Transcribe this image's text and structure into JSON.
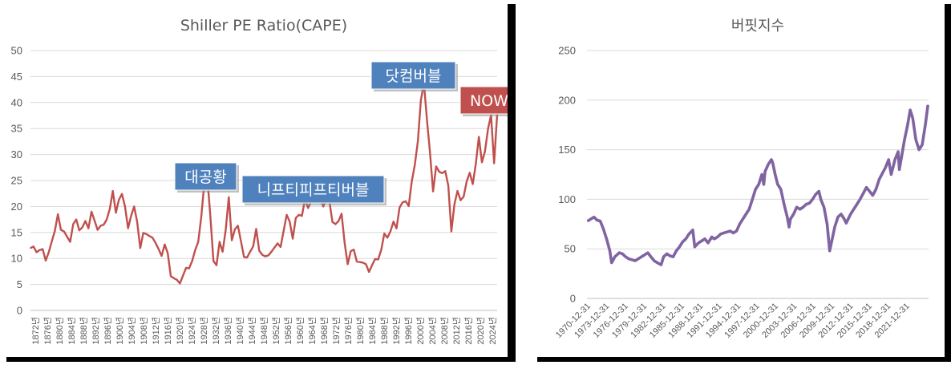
{
  "chart_data": [
    {
      "type": "line",
      "title": "Shiller PE Ratio(CAPE)",
      "ylim": [
        0,
        50
      ],
      "yticks": [
        0,
        5,
        10,
        15,
        20,
        25,
        30,
        35,
        40,
        45,
        50
      ],
      "grid": true,
      "legend": "none",
      "color": "#C0504D",
      "xlim": [
        1871,
        2024
      ],
      "xtick_labels": [
        "1872년",
        "1876년",
        "1880년",
        "1884년",
        "1888년",
        "1892년",
        "1896년",
        "1900년",
        "1904년",
        "1908년",
        "1912년",
        "1916년",
        "1920년",
        "1924년",
        "1928년",
        "1932년",
        "1936년",
        "1940년",
        "1944년",
        "1948년",
        "1952년",
        "1956년",
        "1960년",
        "1964년",
        "1968년",
        "1972년",
        "1976년",
        "1980년",
        "1984년",
        "1988년",
        "1992년",
        "1996년",
        "2000년",
        "2004년",
        "2008년",
        "2012년",
        "2016년",
        "2020년",
        "2024년"
      ],
      "x": [
        1871,
        1872,
        1873,
        1874,
        1875,
        1876,
        1877,
        1878,
        1879,
        1880,
        1881,
        1882,
        1883,
        1884,
        1885,
        1886,
        1887,
        1888,
        1889,
        1890,
        1891,
        1892,
        1893,
        1894,
        1895,
        1896,
        1897,
        1898,
        1899,
        1900,
        1901,
        1902,
        1903,
        1904,
        1905,
        1906,
        1907,
        1908,
        1909,
        1910,
        1911,
        1912,
        1913,
        1914,
        1915,
        1916,
        1917,
        1918,
        1919,
        1920,
        1921,
        1922,
        1923,
        1924,
        1925,
        1926,
        1927,
        1928,
        1929,
        1930,
        1931,
        1932,
        1933,
        1934,
        1935,
        1936,
        1937,
        1938,
        1939,
        1940,
        1941,
        1942,
        1943,
        1944,
        1945,
        1946,
        1947,
        1948,
        1949,
        1950,
        1951,
        1952,
        1953,
        1954,
        1955,
        1956,
        1957,
        1958,
        1959,
        1960,
        1961,
        1962,
        1963,
        1964,
        1965,
        1966,
        1967,
        1968,
        1969,
        1970,
        1971,
        1972,
        1973,
        1974,
        1975,
        1976,
        1977,
        1978,
        1979,
        1980,
        1981,
        1982,
        1983,
        1984,
        1985,
        1986,
        1987,
        1988,
        1989,
        1990,
        1991,
        1992,
        1993,
        1994,
        1995,
        1996,
        1997,
        1998,
        1999,
        2000,
        2001,
        2002,
        2003,
        2004,
        2005,
        2006,
        2007,
        2008,
        2009,
        2010,
        2011,
        2012,
        2013,
        2014,
        2015,
        2016,
        2017,
        2018,
        2019,
        2020,
        2021,
        2022,
        2023,
        2024
      ],
      "y": [
        12,
        12.3,
        11.2,
        11.6,
        11.8,
        9.6,
        11.2,
        13.3,
        15.3,
        18.5,
        15.5,
        15.2,
        14.2,
        13.2,
        16.6,
        17.5,
        15.4,
        16.0,
        17.2,
        15.8,
        19.0,
        17.3,
        15.5,
        16.3,
        16.5,
        17.5,
        19.5,
        23.0,
        18.8,
        21.3,
        22.4,
        20.0,
        15.8,
        18.2,
        20.0,
        17.0,
        12.0,
        14.9,
        14.7,
        14.3,
        14.0,
        13.0,
        11.8,
        10.5,
        12.7,
        11.0,
        6.6,
        6.2,
        5.9,
        5.2,
        6.7,
        8.2,
        8.1,
        9.5,
        11.6,
        13.2,
        18.0,
        24.5,
        25.5,
        18.0,
        9.5,
        8.7,
        13.2,
        11.3,
        15.5,
        21.8,
        13.5,
        15.6,
        16.3,
        13.3,
        10.3,
        10.2,
        11.3,
        12.3,
        15.7,
        11.5,
        10.7,
        10.4,
        10.6,
        11.3,
        12.1,
        12.9,
        12.2,
        15.3,
        18.4,
        17.1,
        13.8,
        17.8,
        18.4,
        18.2,
        21.4,
        19.7,
        21.0,
        22.3,
        23.5,
        21.5,
        20.0,
        21.5,
        21.0,
        17.0,
        16.6,
        17.2,
        18.6,
        13.0,
        8.9,
        11.4,
        11.7,
        9.4,
        9.3,
        9.2,
        8.9,
        7.4,
        8.7,
        9.9,
        9.8,
        11.7,
        14.8,
        14.0,
        15.2,
        17.1,
        15.8,
        19.8,
        20.8,
        21.0,
        20.1,
        24.8,
        28.0,
        32.5,
        40.5,
        43.7,
        36.6,
        30.3,
        22.9,
        27.7,
        26.7,
        26.4,
        26.8,
        24.0,
        15.2,
        20.4,
        23.0,
        21.2,
        21.9,
        24.8,
        26.5,
        24.3,
        28.2,
        33.4,
        28.5,
        30.6,
        34.9,
        37.6,
        28.3,
        37.7
      ]
    },
    {
      "type": "line",
      "title": "버핏지수",
      "ylim": [
        0,
        250
      ],
      "yticks": [
        0,
        50,
        100,
        150,
        200,
        250
      ],
      "grid": true,
      "legend": "none",
      "color": "#8064A2",
      "xlim": [
        1970.9,
        2024.8
      ],
      "xtick_labels": [
        "1970-12-31",
        "1973-12-31",
        "1976-12-31",
        "1979-12-31",
        "1982-12-31",
        "1985-12-31",
        "1988-12-31",
        "1991-12-31",
        "1994-12-31",
        "1997-12-31",
        "2000-12-31",
        "2003-12-31",
        "2006-12-31",
        "2009-12-31",
        "2012-12-31",
        "2015-12-31",
        "2018-12-31",
        "2021-12-31"
      ],
      "x": [
        1971.0,
        1971.5,
        1972.0,
        1972.5,
        1973.0,
        1973.5,
        1974.0,
        1974.5,
        1974.8,
        1975.3,
        1976.0,
        1976.5,
        1977.0,
        1977.5,
        1978.0,
        1978.5,
        1979.0,
        1979.5,
        1980.0,
        1980.5,
        1981.0,
        1981.5,
        1982.0,
        1982.6,
        1983.0,
        1983.5,
        1984.0,
        1984.5,
        1985.0,
        1985.5,
        1986.0,
        1986.5,
        1987.0,
        1987.6,
        1987.9,
        1988.5,
        1989.0,
        1989.5,
        1990.0,
        1990.6,
        1991.0,
        1991.5,
        1992.0,
        1992.5,
        1993.0,
        1993.5,
        1994.0,
        1994.5,
        1995.0,
        1995.5,
        1996.0,
        1996.5,
        1997.0,
        1997.5,
        1998.0,
        1998.5,
        1998.8,
        1999.0,
        1999.5,
        2000.0,
        2000.2,
        2000.6,
        2001.0,
        2001.5,
        2002.0,
        2002.5,
        2002.8,
        2003.0,
        2003.5,
        2004.0,
        2004.5,
        2005.0,
        2005.5,
        2006.0,
        2006.5,
        2007.0,
        2007.5,
        2007.8,
        2008.3,
        2008.8,
        2009.2,
        2009.6,
        2010.0,
        2010.5,
        2011.0,
        2011.5,
        2011.8,
        2012.5,
        2013.0,
        2013.5,
        2014.0,
        2014.5,
        2015.0,
        2015.5,
        2016.0,
        2016.5,
        2017.0,
        2017.5,
        2018.0,
        2018.5,
        2018.9,
        2019.5,
        2020.0,
        2020.2,
        2020.6,
        2021.0,
        2021.5,
        2021.9,
        2022.3,
        2022.8,
        2023.3,
        2023.8,
        2024.3,
        2024.7
      ],
      "y": [
        78,
        80,
        82,
        79,
        78,
        70,
        60,
        48,
        36,
        42,
        46,
        45,
        42,
        40,
        39,
        38,
        40,
        42,
        44,
        46,
        42,
        38,
        36,
        34,
        42,
        45,
        43,
        42,
        48,
        52,
        57,
        60,
        65,
        69,
        52,
        56,
        58,
        60,
        56,
        62,
        60,
        62,
        65,
        66,
        67,
        68,
        66,
        68,
        75,
        80,
        85,
        90,
        100,
        110,
        115,
        125,
        115,
        128,
        135,
        140,
        137,
        125,
        115,
        110,
        95,
        82,
        72,
        80,
        85,
        92,
        90,
        92,
        95,
        96,
        100,
        105,
        108,
        100,
        92,
        75,
        48,
        60,
        72,
        82,
        85,
        80,
        76,
        85,
        90,
        95,
        100,
        106,
        112,
        108,
        104,
        110,
        120,
        126,
        132,
        140,
        125,
        140,
        148,
        130,
        145,
        160,
        175,
        190,
        182,
        160,
        150,
        155,
        175,
        195
      ]
    },
    {
      "callouts": [
        "닷컴버블",
        "NOW",
        "대공황",
        "니프티피프티버블"
      ],
      "callout_colors": {
        "blue": "#4F81BD",
        "red": "#C0504D"
      }
    }
  ]
}
